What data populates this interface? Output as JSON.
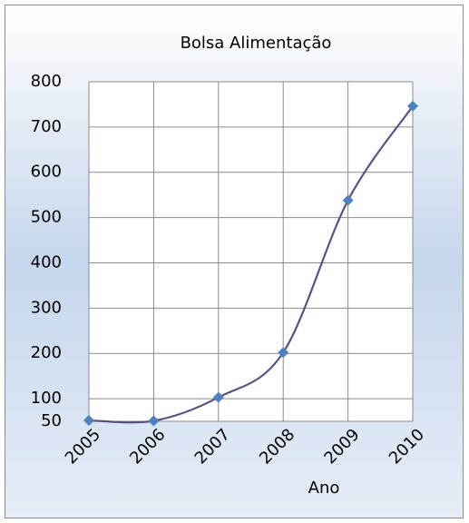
{
  "chart_data": {
    "type": "line",
    "title": "Bolsa Alimentação",
    "x_label": "Ano",
    "categories": [
      "2005",
      "2006",
      "2007",
      "2008",
      "2009",
      "2010"
    ],
    "values": [
      52,
      51,
      103,
      202,
      538,
      746
    ],
    "color": "#5e4f80",
    "marker_color": "#4f81bd",
    "smooth": true,
    "ylim": [
      50,
      800
    ],
    "yticks": [
      50,
      100,
      200,
      300,
      400,
      500,
      600,
      700,
      800
    ],
    "grid": true
  }
}
